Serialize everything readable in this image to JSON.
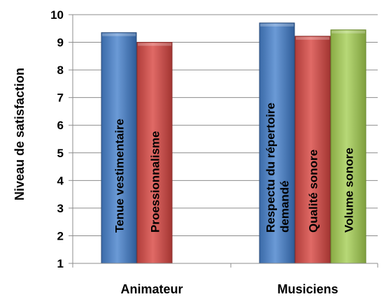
{
  "chart_data": {
    "type": "bar",
    "ylabel": "Niveau de satisfaction",
    "ylim": [
      1,
      10
    ],
    "yticks": [
      1,
      2,
      3,
      4,
      5,
      6,
      7,
      8,
      9,
      10
    ],
    "grid": true,
    "groups": [
      {
        "category": "Animateur",
        "bars": [
          {
            "label": "Tenue vestimentaire",
            "value": 9.35,
            "color": "#4A7EBB"
          },
          {
            "label": "Proessionnalisme",
            "value": 9.0,
            "color": "#C0504D"
          }
        ]
      },
      {
        "category": "Musiciens",
        "bars": [
          {
            "label": "Respectu du répertoire demandé",
            "value": 9.7,
            "color": "#4A7EBB"
          },
          {
            "label": "Qualité sonore",
            "value": 9.22,
            "color": "#C0504D"
          },
          {
            "label": "Volume sonore",
            "value": 9.45,
            "color": "#9BBB59"
          }
        ]
      }
    ]
  }
}
